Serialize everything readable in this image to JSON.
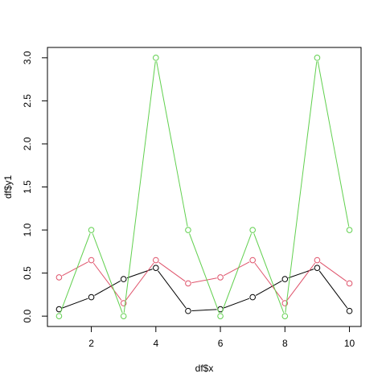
{
  "chart_data": {
    "type": "line",
    "title": "",
    "xlabel": "df$x",
    "ylabel": "df$y1",
    "xlim": [
      0.64,
      10.36
    ],
    "ylim": [
      -0.12,
      3.12
    ],
    "x_ticks": [
      2,
      4,
      6,
      8,
      10
    ],
    "y_ticks": [
      0.0,
      0.5,
      1.0,
      1.5,
      2.0,
      2.5,
      3.0
    ],
    "x_tick_labels": [
      "2",
      "4",
      "6",
      "8",
      "10"
    ],
    "y_tick_labels": [
      "0.0",
      "0.5",
      "1.0",
      "1.5",
      "2.0",
      "2.5",
      "3.0"
    ],
    "grid": false,
    "marker": "open-circle",
    "x": [
      1,
      2,
      3,
      4,
      5,
      6,
      7,
      8,
      9,
      10
    ],
    "series": [
      {
        "color": "#000000",
        "values": [
          0.08,
          0.22,
          0.43,
          0.56,
          0.06,
          0.08,
          0.22,
          0.43,
          0.56,
          0.06
        ]
      },
      {
        "color": "#DF536B",
        "values": [
          0.45,
          0.65,
          0.15,
          0.65,
          0.38,
          0.45,
          0.65,
          0.15,
          0.65,
          0.38
        ]
      },
      {
        "color": "#61D04F",
        "values": [
          0.0,
          1.0,
          0.0,
          3.0,
          1.0,
          0.0,
          1.0,
          0.0,
          3.0,
          1.0
        ]
      }
    ]
  }
}
